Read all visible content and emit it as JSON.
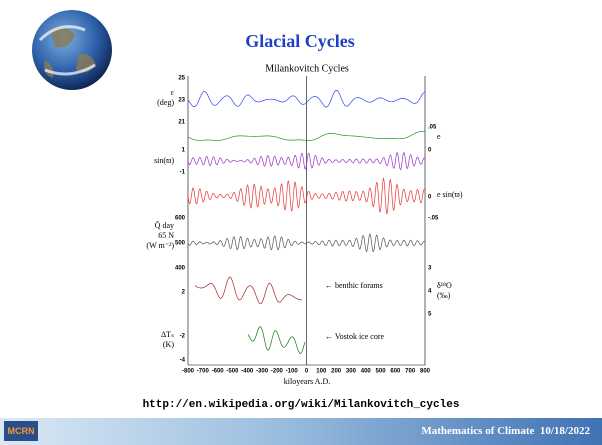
{
  "slide": {
    "title": "Glacial Cycles",
    "figure": {
      "title": "Milankovitch Cycles",
      "x_axis_label": "kiloyears A.D.",
      "x_ticks": [
        "-800",
        "-700",
        "-600",
        "-500",
        "-400",
        "-300",
        "-200",
        "-100",
        "0",
        "100",
        "200",
        "300",
        "400",
        "500",
        "600",
        "700",
        "800"
      ],
      "panels": [
        {
          "label": [
            "ε",
            "(deg)"
          ],
          "left_ticks": [
            "25",
            "23",
            "21"
          ],
          "right_ticks": []
        },
        {
          "label": [
            "e"
          ],
          "left_ticks": [],
          "right_ticks": [
            ".05",
            "0"
          ]
        },
        {
          "label": [
            "sin(ϖ)"
          ],
          "left_ticks": [
            "1",
            "-1"
          ],
          "right_ticks": []
        },
        {
          "label": [
            "e sin(ϖ)"
          ],
          "left_ticks": [],
          "right_ticks": [
            "0",
            "-.05"
          ]
        },
        {
          "label": [
            "Q̄ day",
            "65 N",
            "(W m⁻²)"
          ],
          "left_ticks": [
            "600",
            "500",
            "400"
          ],
          "right_ticks": []
        },
        {
          "label": [
            "δ¹⁸O",
            "(‰)"
          ],
          "left_ticks": [],
          "right_ticks": [
            "3",
            "4",
            "5"
          ]
        },
        {
          "label": [
            "ΔTₛ",
            "(K)"
          ],
          "left_ticks": [
            "2",
            "-2",
            "-4"
          ],
          "right_ticks": []
        }
      ],
      "annotations": [
        "← benthic forams",
        "← Vostok ice core"
      ]
    },
    "url": "http://en.wikipedia.org/wiki/Milankovitch_cycles",
    "footer": {
      "logo": "MCRN",
      "text": "Mathematics of Climate  10/18/2022"
    }
  }
}
